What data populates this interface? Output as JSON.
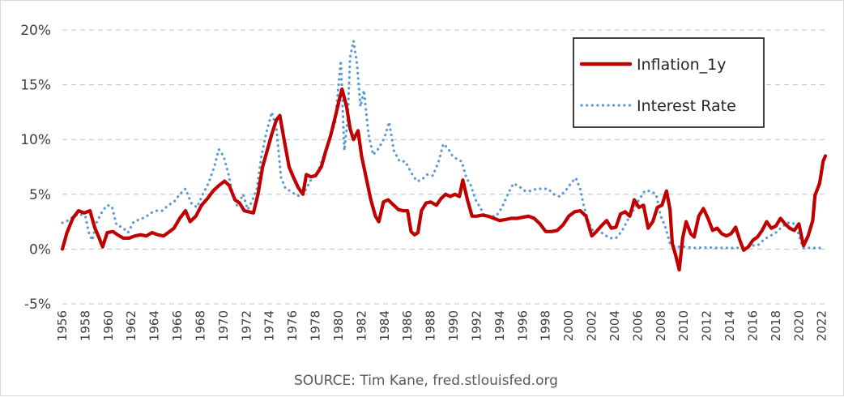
{
  "chart_data": {
    "type": "line",
    "title": "",
    "xlabel": "",
    "ylabel": "",
    "source": "SOURCE: Tim Kane, fred.stlouisfed.org",
    "ylim": [
      -5,
      20
    ],
    "xlim": [
      1956,
      2022.3
    ],
    "y_ticks": [
      "20%",
      "15%",
      "10%",
      "5%",
      "0%",
      "-5%"
    ],
    "y_tick_values": [
      20,
      15,
      10,
      5,
      0,
      -5
    ],
    "x_ticks": [
      "1956",
      "1958",
      "1960",
      "1962",
      "1964",
      "1966",
      "1968",
      "1970",
      "1972",
      "1974",
      "1976",
      "1978",
      "1980",
      "1982",
      "1984",
      "1986",
      "1988",
      "1990",
      "1992",
      "1994",
      "1996",
      "1998",
      "2000",
      "2002",
      "2004",
      "2006",
      "2008",
      "2010",
      "2012",
      "2014",
      "2016",
      "2018",
      "2020",
      "2022"
    ],
    "grid": "horizontal dashed",
    "legend_position": "top-right",
    "series": [
      {
        "name": "Inflation_1y",
        "color": "#c00000",
        "style": "solid",
        "points": [
          [
            1956.0,
            0.0
          ],
          [
            1956.4,
            1.5
          ],
          [
            1956.9,
            2.8
          ],
          [
            1957.4,
            3.5
          ],
          [
            1957.9,
            3.3
          ],
          [
            1958.4,
            3.5
          ],
          [
            1958.8,
            2.0
          ],
          [
            1959.2,
            1.0
          ],
          [
            1959.5,
            0.2
          ],
          [
            1959.9,
            1.5
          ],
          [
            1960.4,
            1.6
          ],
          [
            1960.8,
            1.3
          ],
          [
            1961.3,
            1.0
          ],
          [
            1961.8,
            1.0
          ],
          [
            1962.3,
            1.2
          ],
          [
            1962.8,
            1.3
          ],
          [
            1963.3,
            1.2
          ],
          [
            1963.8,
            1.5
          ],
          [
            1964.3,
            1.3
          ],
          [
            1964.8,
            1.2
          ],
          [
            1965.2,
            1.5
          ],
          [
            1965.7,
            1.9
          ],
          [
            1966.2,
            2.8
          ],
          [
            1966.7,
            3.5
          ],
          [
            1967.1,
            2.5
          ],
          [
            1967.6,
            3.0
          ],
          [
            1968.1,
            4.0
          ],
          [
            1968.6,
            4.6
          ],
          [
            1969.1,
            5.3
          ],
          [
            1969.6,
            5.8
          ],
          [
            1970.1,
            6.2
          ],
          [
            1970.5,
            5.8
          ],
          [
            1971.0,
            4.5
          ],
          [
            1971.4,
            4.2
          ],
          [
            1971.8,
            3.5
          ],
          [
            1972.2,
            3.4
          ],
          [
            1972.6,
            3.3
          ],
          [
            1973.0,
            5.0
          ],
          [
            1973.4,
            7.5
          ],
          [
            1973.8,
            9.0
          ],
          [
            1974.2,
            10.5
          ],
          [
            1974.6,
            11.8
          ],
          [
            1974.9,
            12.2
          ],
          [
            1975.3,
            9.8
          ],
          [
            1975.7,
            7.5
          ],
          [
            1976.1,
            6.5
          ],
          [
            1976.5,
            5.6
          ],
          [
            1976.9,
            5.0
          ],
          [
            1977.2,
            6.8
          ],
          [
            1977.6,
            6.6
          ],
          [
            1978.0,
            6.7
          ],
          [
            1978.5,
            7.5
          ],
          [
            1978.9,
            9.0
          ],
          [
            1979.3,
            10.3
          ],
          [
            1979.7,
            12.0
          ],
          [
            1980.1,
            13.8
          ],
          [
            1980.3,
            14.6
          ],
          [
            1980.7,
            13.0
          ],
          [
            1981.0,
            11.0
          ],
          [
            1981.3,
            10.0
          ],
          [
            1981.7,
            10.8
          ],
          [
            1982.0,
            8.5
          ],
          [
            1982.4,
            6.5
          ],
          [
            1982.8,
            4.5
          ],
          [
            1983.2,
            3.0
          ],
          [
            1983.5,
            2.5
          ],
          [
            1983.9,
            4.3
          ],
          [
            1984.3,
            4.5
          ],
          [
            1984.8,
            4.0
          ],
          [
            1985.2,
            3.6
          ],
          [
            1985.6,
            3.5
          ],
          [
            1986.0,
            3.5
          ],
          [
            1986.3,
            1.6
          ],
          [
            1986.6,
            1.3
          ],
          [
            1986.9,
            1.5
          ],
          [
            1987.2,
            3.5
          ],
          [
            1987.6,
            4.2
          ],
          [
            1988.0,
            4.3
          ],
          [
            1988.5,
            4.0
          ],
          [
            1988.9,
            4.6
          ],
          [
            1989.3,
            5.0
          ],
          [
            1989.7,
            4.8
          ],
          [
            1990.1,
            5.0
          ],
          [
            1990.5,
            4.8
          ],
          [
            1990.8,
            6.3
          ],
          [
            1991.2,
            4.5
          ],
          [
            1991.6,
            3.0
          ],
          [
            1992.0,
            3.0
          ],
          [
            1992.5,
            3.1
          ],
          [
            1993.0,
            3.0
          ],
          [
            1993.5,
            2.8
          ],
          [
            1994.0,
            2.6
          ],
          [
            1994.5,
            2.7
          ],
          [
            1995.0,
            2.8
          ],
          [
            1995.5,
            2.8
          ],
          [
            1996.0,
            2.9
          ],
          [
            1996.5,
            3.0
          ],
          [
            1997.0,
            2.8
          ],
          [
            1997.5,
            2.3
          ],
          [
            1998.0,
            1.6
          ],
          [
            1998.5,
            1.6
          ],
          [
            1999.0,
            1.7
          ],
          [
            1999.5,
            2.2
          ],
          [
            2000.0,
            3.0
          ],
          [
            2000.5,
            3.4
          ],
          [
            2001.0,
            3.5
          ],
          [
            2001.5,
            3.0
          ],
          [
            2002.0,
            1.2
          ],
          [
            2002.4,
            1.6
          ],
          [
            2002.9,
            2.2
          ],
          [
            2003.3,
            2.6
          ],
          [
            2003.7,
            1.9
          ],
          [
            2004.1,
            2.0
          ],
          [
            2004.5,
            3.2
          ],
          [
            2004.9,
            3.4
          ],
          [
            2005.3,
            3.0
          ],
          [
            2005.7,
            4.5
          ],
          [
            2006.1,
            3.8
          ],
          [
            2006.5,
            4.0
          ],
          [
            2006.9,
            1.9
          ],
          [
            2007.3,
            2.5
          ],
          [
            2007.7,
            3.8
          ],
          [
            2008.1,
            4.0
          ],
          [
            2008.5,
            5.3
          ],
          [
            2008.8,
            3.6
          ],
          [
            2009.0,
            0.5
          ],
          [
            2009.3,
            -0.6
          ],
          [
            2009.6,
            -1.9
          ],
          [
            2009.9,
            1.0
          ],
          [
            2010.2,
            2.5
          ],
          [
            2010.6,
            1.4
          ],
          [
            2010.9,
            1.1
          ],
          [
            2011.3,
            3.0
          ],
          [
            2011.7,
            3.7
          ],
          [
            2012.1,
            2.8
          ],
          [
            2012.5,
            1.7
          ],
          [
            2012.9,
            1.9
          ],
          [
            2013.3,
            1.4
          ],
          [
            2013.7,
            1.2
          ],
          [
            2014.1,
            1.4
          ],
          [
            2014.5,
            2.0
          ],
          [
            2014.9,
            0.7
          ],
          [
            2015.2,
            -0.1
          ],
          [
            2015.6,
            0.2
          ],
          [
            2016.0,
            0.8
          ],
          [
            2016.4,
            1.1
          ],
          [
            2016.8,
            1.7
          ],
          [
            2017.2,
            2.5
          ],
          [
            2017.6,
            1.9
          ],
          [
            2018.0,
            2.1
          ],
          [
            2018.4,
            2.8
          ],
          [
            2018.8,
            2.3
          ],
          [
            2019.2,
            1.9
          ],
          [
            2019.6,
            1.7
          ],
          [
            2020.0,
            2.3
          ],
          [
            2020.4,
            0.3
          ],
          [
            2020.8,
            1.2
          ],
          [
            2021.2,
            2.6
          ],
          [
            2021.4,
            4.9
          ],
          [
            2021.8,
            6.0
          ],
          [
            2022.1,
            8.0
          ],
          [
            2022.3,
            8.5
          ]
        ]
      },
      {
        "name": "Interest Rate",
        "color": "#5b9bd5",
        "style": "dotted",
        "points": [
          [
            1956.0,
            2.4
          ],
          [
            1956.5,
            2.6
          ],
          [
            1957.0,
            3.0
          ],
          [
            1957.5,
            3.2
          ],
          [
            1958.0,
            3.0
          ],
          [
            1958.3,
            1.5
          ],
          [
            1958.6,
            0.8
          ],
          [
            1959.0,
            2.5
          ],
          [
            1959.5,
            3.5
          ],
          [
            1959.9,
            4.0
          ],
          [
            1960.3,
            3.9
          ],
          [
            1960.7,
            2.2
          ],
          [
            1961.2,
            2.0
          ],
          [
            1961.7,
            1.5
          ],
          [
            1962.2,
            2.5
          ],
          [
            1962.7,
            2.7
          ],
          [
            1963.2,
            2.9
          ],
          [
            1963.7,
            3.3
          ],
          [
            1964.2,
            3.5
          ],
          [
            1964.7,
            3.5
          ],
          [
            1965.2,
            4.0
          ],
          [
            1965.7,
            4.3
          ],
          [
            1966.2,
            5.0
          ],
          [
            1966.7,
            5.5
          ],
          [
            1967.2,
            4.2
          ],
          [
            1967.7,
            3.8
          ],
          [
            1968.2,
            5.0
          ],
          [
            1968.7,
            6.0
          ],
          [
            1969.2,
            7.5
          ],
          [
            1969.6,
            9.1
          ],
          [
            1970.0,
            8.5
          ],
          [
            1970.4,
            7.0
          ],
          [
            1970.8,
            5.0
          ],
          [
            1971.2,
            3.9
          ],
          [
            1971.7,
            5.0
          ],
          [
            1972.1,
            3.6
          ],
          [
            1972.5,
            4.4
          ],
          [
            1972.9,
            5.5
          ],
          [
            1973.3,
            8.5
          ],
          [
            1973.7,
            10.5
          ],
          [
            1974.2,
            12.5
          ],
          [
            1974.6,
            11.0
          ],
          [
            1975.0,
            6.5
          ],
          [
            1975.4,
            5.5
          ],
          [
            1975.8,
            5.3
          ],
          [
            1976.2,
            5.0
          ],
          [
            1976.7,
            4.8
          ],
          [
            1977.2,
            5.5
          ],
          [
            1977.7,
            6.5
          ],
          [
            1978.2,
            7.0
          ],
          [
            1978.7,
            8.5
          ],
          [
            1979.2,
            10.0
          ],
          [
            1979.7,
            11.5
          ],
          [
            1980.2,
            17.2
          ],
          [
            1980.5,
            9.0
          ],
          [
            1980.8,
            12.0
          ],
          [
            1981.0,
            17.5
          ],
          [
            1981.3,
            19.0
          ],
          [
            1981.6,
            17.0
          ],
          [
            1981.9,
            13.0
          ],
          [
            1982.2,
            14.5
          ],
          [
            1982.6,
            10.5
          ],
          [
            1983.0,
            8.6
          ],
          [
            1983.5,
            9.2
          ],
          [
            1984.0,
            10.2
          ],
          [
            1984.4,
            11.6
          ],
          [
            1984.8,
            9.0
          ],
          [
            1985.3,
            8.0
          ],
          [
            1985.8,
            8.0
          ],
          [
            1986.3,
            7.0
          ],
          [
            1986.8,
            6.2
          ],
          [
            1987.2,
            6.3
          ],
          [
            1987.7,
            6.8
          ],
          [
            1988.2,
            6.7
          ],
          [
            1988.7,
            8.0
          ],
          [
            1989.1,
            9.6
          ],
          [
            1989.5,
            9.2
          ],
          [
            1989.9,
            8.5
          ],
          [
            1990.3,
            8.2
          ],
          [
            1990.7,
            8.0
          ],
          [
            1991.1,
            6.5
          ],
          [
            1991.5,
            5.8
          ],
          [
            1991.9,
            4.5
          ],
          [
            1992.3,
            3.8
          ],
          [
            1992.7,
            3.0
          ],
          [
            1993.2,
            3.0
          ],
          [
            1993.7,
            3.0
          ],
          [
            1994.2,
            3.8
          ],
          [
            1994.7,
            5.0
          ],
          [
            1995.2,
            6.0
          ],
          [
            1995.7,
            5.7
          ],
          [
            1996.2,
            5.3
          ],
          [
            1996.7,
            5.3
          ],
          [
            1997.2,
            5.5
          ],
          [
            1997.7,
            5.5
          ],
          [
            1998.2,
            5.5
          ],
          [
            1998.7,
            5.0
          ],
          [
            1999.2,
            4.8
          ],
          [
            1999.7,
            5.3
          ],
          [
            2000.2,
            6.0
          ],
          [
            2000.6,
            6.5
          ],
          [
            2001.0,
            5.5
          ],
          [
            2001.3,
            4.0
          ],
          [
            2001.7,
            2.5
          ],
          [
            2002.1,
            1.7
          ],
          [
            2002.6,
            1.7
          ],
          [
            2003.1,
            1.3
          ],
          [
            2003.6,
            1.0
          ],
          [
            2004.1,
            1.0
          ],
          [
            2004.6,
            1.6
          ],
          [
            2005.1,
            2.6
          ],
          [
            2005.6,
            3.5
          ],
          [
            2006.1,
            4.5
          ],
          [
            2006.6,
            5.3
          ],
          [
            2007.1,
            5.3
          ],
          [
            2007.6,
            5.0
          ],
          [
            2008.0,
            3.0
          ],
          [
            2008.4,
            2.0
          ],
          [
            2008.8,
            0.5
          ],
          [
            2009.2,
            0.2
          ],
          [
            2010.0,
            0.2
          ],
          [
            2011.0,
            0.1
          ],
          [
            2012.0,
            0.15
          ],
          [
            2013.0,
            0.1
          ],
          [
            2014.0,
            0.1
          ],
          [
            2015.0,
            0.1
          ],
          [
            2015.9,
            0.3
          ],
          [
            2016.5,
            0.4
          ],
          [
            2017.0,
            0.9
          ],
          [
            2017.5,
            1.2
          ],
          [
            2018.0,
            1.5
          ],
          [
            2018.5,
            2.0
          ],
          [
            2019.0,
            2.4
          ],
          [
            2019.5,
            2.4
          ],
          [
            2019.9,
            1.6
          ],
          [
            2020.2,
            0.6
          ],
          [
            2020.4,
            0.1
          ],
          [
            2021.0,
            0.1
          ],
          [
            2021.6,
            0.1
          ],
          [
            2022.1,
            0.1
          ]
        ]
      }
    ]
  }
}
